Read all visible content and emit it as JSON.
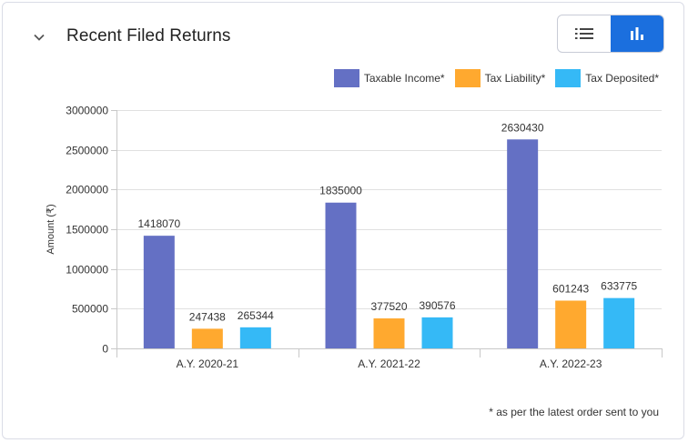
{
  "header": {
    "title": "Recent Filed Returns",
    "view_toggle": {
      "list_icon": "list-icon",
      "chart_icon": "bar-chart-icon",
      "active": "chart"
    },
    "collapse_icon": "chevron-down-icon"
  },
  "colors": {
    "taxable_income": "#6470c4",
    "tax_liability": "#ffa92f",
    "tax_deposited": "#35b9f6",
    "active_toggle": "#1b6fde"
  },
  "legend": [
    {
      "label": "Taxable Income*",
      "color": "#6470c4"
    },
    {
      "label": "Tax Liability*",
      "color": "#ffa92f"
    },
    {
      "label": "Tax Deposited*",
      "color": "#35b9f6"
    }
  ],
  "footnote": "* as per the latest order sent to you",
  "chart_data": {
    "type": "bar",
    "categories": [
      "A.Y. 2020-21",
      "A.Y. 2021-22",
      "A.Y. 2022-23"
    ],
    "series": [
      {
        "name": "Taxable Income*",
        "color": "#6470c4",
        "values": [
          1418070,
          1835000,
          2630430
        ]
      },
      {
        "name": "Tax Liability*",
        "color": "#ffa92f",
        "values": [
          247438,
          377520,
          601243
        ]
      },
      {
        "name": "Tax Deposited*",
        "color": "#35b9f6",
        "values": [
          265344,
          390576,
          633775
        ]
      }
    ],
    "ylabel": "Amount (₹)",
    "xlabel": "",
    "ylim": [
      0,
      3000000
    ],
    "yticks": [
      0,
      500000,
      1000000,
      1500000,
      2000000,
      2500000,
      3000000
    ],
    "grid": true,
    "legend_position": "top-right"
  }
}
